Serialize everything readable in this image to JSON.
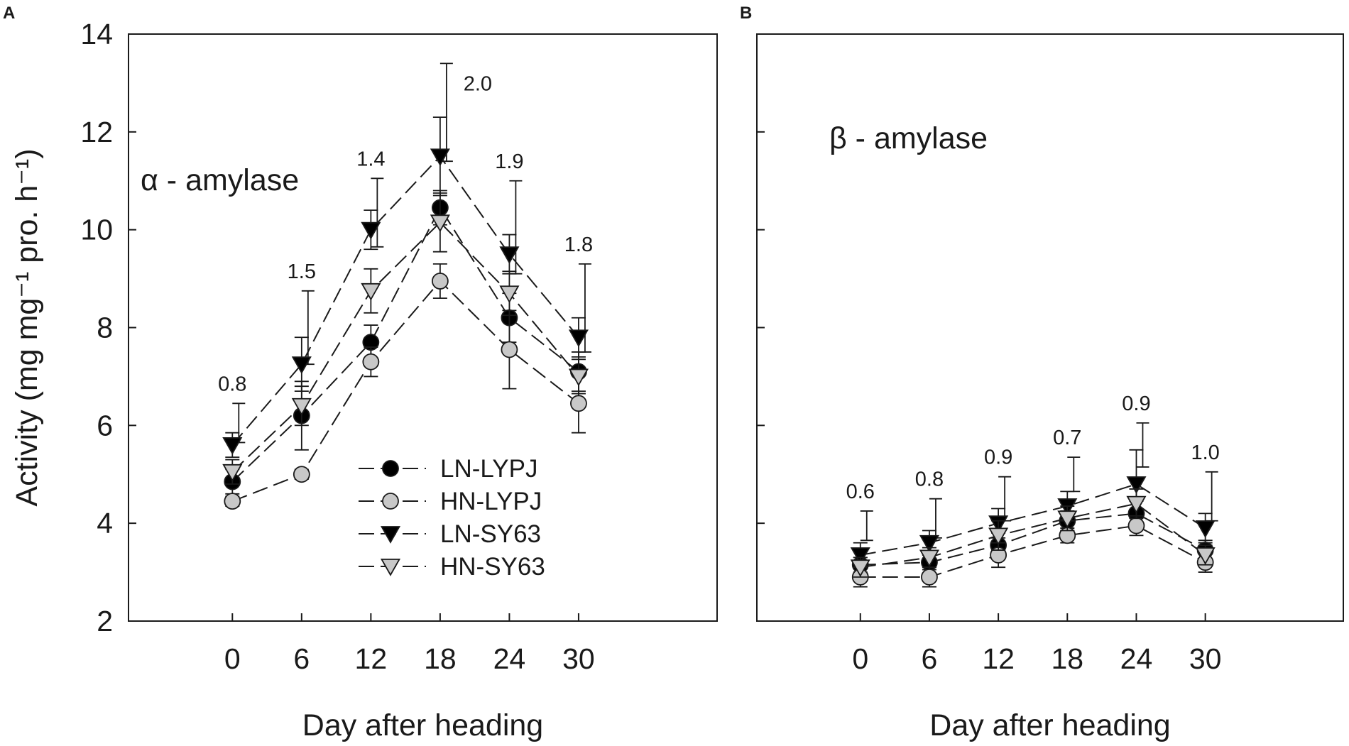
{
  "chart_data": [
    {
      "type": "line",
      "panel": "A",
      "title": "α - amylase",
      "xlabel": "Day after heading",
      "ylabel": "Activity (mg mg⁻¹ pro. h⁻¹)",
      "x": [
        0,
        6,
        12,
        18,
        24,
        30
      ],
      "xticks": [
        "0",
        "6",
        "12",
        "18",
        "24",
        "30"
      ],
      "yticks": [
        "2",
        "4",
        "6",
        "8",
        "10",
        "12",
        "14"
      ],
      "ylim": [
        2,
        14
      ],
      "series": [
        {
          "name": "LN-LYPJ",
          "marker": "circle",
          "fill": "#000000",
          "values": [
            4.85,
            6.2,
            7.7,
            10.45,
            8.2,
            7.1
          ],
          "errors": [
            0.25,
            0.7,
            0.35,
            0.35,
            0.5,
            0.4
          ]
        },
        {
          "name": "HN-LYPJ",
          "marker": "circle",
          "fill": "#c8c8c8",
          "values": [
            4.45,
            5.0,
            7.3,
            8.95,
            7.55,
            6.45
          ],
          "errors": [
            0.1,
            0.1,
            0.3,
            0.35,
            0.8,
            0.6
          ]
        },
        {
          "name": "LN-SY63",
          "marker": "triangle-down",
          "fill": "#000000",
          "values": [
            5.6,
            7.25,
            10.0,
            11.5,
            9.5,
            7.8
          ],
          "errors": [
            0.25,
            0.55,
            0.4,
            0.8,
            0.4,
            0.4
          ]
        },
        {
          "name": "HN-SY63",
          "marker": "triangle-down",
          "fill": "#c8c8c8",
          "values": [
            5.05,
            6.4,
            8.75,
            10.15,
            8.7,
            7.0
          ],
          "errors": [
            0.25,
            0.4,
            0.45,
            0.6,
            0.45,
            0.35
          ]
        }
      ],
      "lsd": [
        {
          "x": 0,
          "label": "0.8",
          "value": 0.8,
          "top": 6.45
        },
        {
          "x": 6,
          "label": "1.5",
          "value": 1.5,
          "top": 8.75
        },
        {
          "x": 12,
          "label": "1.4",
          "value": 1.4,
          "top": 11.05
        },
        {
          "x": 18,
          "label": "2.0",
          "value": 2.0,
          "top": 13.4
        },
        {
          "x": 24,
          "label": "1.9",
          "value": 1.9,
          "top": 11.0
        },
        {
          "x": 30,
          "label": "1.8",
          "value": 1.8,
          "top": 9.3
        }
      ],
      "legend": {
        "position": "lower-center",
        "entries": [
          "LN-LYPJ",
          "HN-LYPJ",
          "LN-SY63",
          "HN-SY63"
        ]
      }
    },
    {
      "type": "line",
      "panel": "B",
      "title": "β - amylase",
      "xlabel": "Day after heading",
      "ylabel": "",
      "x": [
        0,
        6,
        12,
        18,
        24,
        30
      ],
      "xticks": [
        "0",
        "6",
        "12",
        "18",
        "24",
        "30"
      ],
      "yticks": [
        "2",
        "4",
        "6",
        "8",
        "10",
        "12",
        "14"
      ],
      "ylim": [
        2,
        14
      ],
      "series": [
        {
          "name": "LN-LYPJ",
          "marker": "circle",
          "fill": "#000000",
          "values": [
            3.15,
            3.2,
            3.55,
            4.05,
            4.2,
            3.45
          ],
          "errors": [
            0.15,
            0.15,
            0.25,
            0.2,
            0.25,
            0.2
          ]
        },
        {
          "name": "HN-LYPJ",
          "marker": "circle",
          "fill": "#c8c8c8",
          "values": [
            2.9,
            2.9,
            3.35,
            3.75,
            3.95,
            3.2
          ],
          "errors": [
            0.2,
            0.2,
            0.25,
            0.15,
            0.2,
            0.2
          ]
        },
        {
          "name": "LN-SY63",
          "marker": "triangle-down",
          "fill": "#000000",
          "values": [
            3.35,
            3.6,
            4.0,
            4.35,
            4.8,
            3.9
          ],
          "errors": [
            0.25,
            0.25,
            0.3,
            0.3,
            0.7,
            0.3
          ]
        },
        {
          "name": "HN-SY63",
          "marker": "triangle-down",
          "fill": "#c8c8c8",
          "values": [
            3.1,
            3.3,
            3.75,
            4.1,
            4.4,
            3.35
          ],
          "errors": [
            0.2,
            0.2,
            0.3,
            0.25,
            0.3,
            0.2
          ]
        }
      ],
      "lsd": [
        {
          "x": 0,
          "label": "0.6",
          "value": 0.6,
          "top": 4.25
        },
        {
          "x": 6,
          "label": "0.8",
          "value": 0.8,
          "top": 4.5
        },
        {
          "x": 12,
          "label": "0.9",
          "value": 0.9,
          "top": 4.95
        },
        {
          "x": 18,
          "label": "0.7",
          "value": 0.7,
          "top": 5.35
        },
        {
          "x": 24,
          "label": "0.9",
          "value": 0.9,
          "top": 6.05
        },
        {
          "x": 30,
          "label": "1.0",
          "value": 1.0,
          "top": 5.05
        }
      ],
      "legend": null
    }
  ]
}
